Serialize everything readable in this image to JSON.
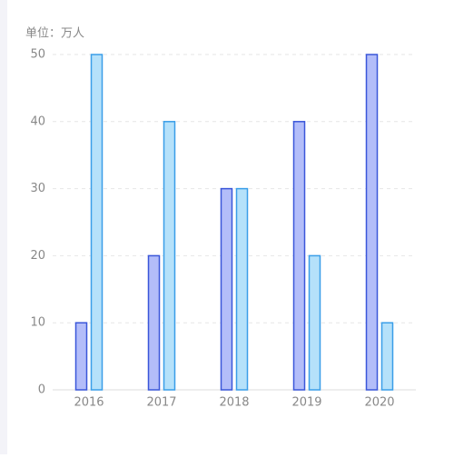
{
  "chart_data": {
    "type": "bar",
    "y_label": "单位：万人",
    "categories": [
      "2016",
      "2017",
      "2018",
      "2019",
      "2020"
    ],
    "series": [
      {
        "color": "#b3bdf9",
        "stroke": "#3a56d9",
        "values": [
          10,
          20,
          30,
          40,
          50
        ]
      },
      {
        "color": "#b5e1fa",
        "stroke": "#3a9ee8",
        "values": [
          50,
          40,
          30,
          20,
          10
        ]
      }
    ],
    "ylim": [
      0,
      50
    ],
    "yticks": [
      0,
      10,
      20,
      30,
      40,
      50
    ],
    "grid": true
  }
}
